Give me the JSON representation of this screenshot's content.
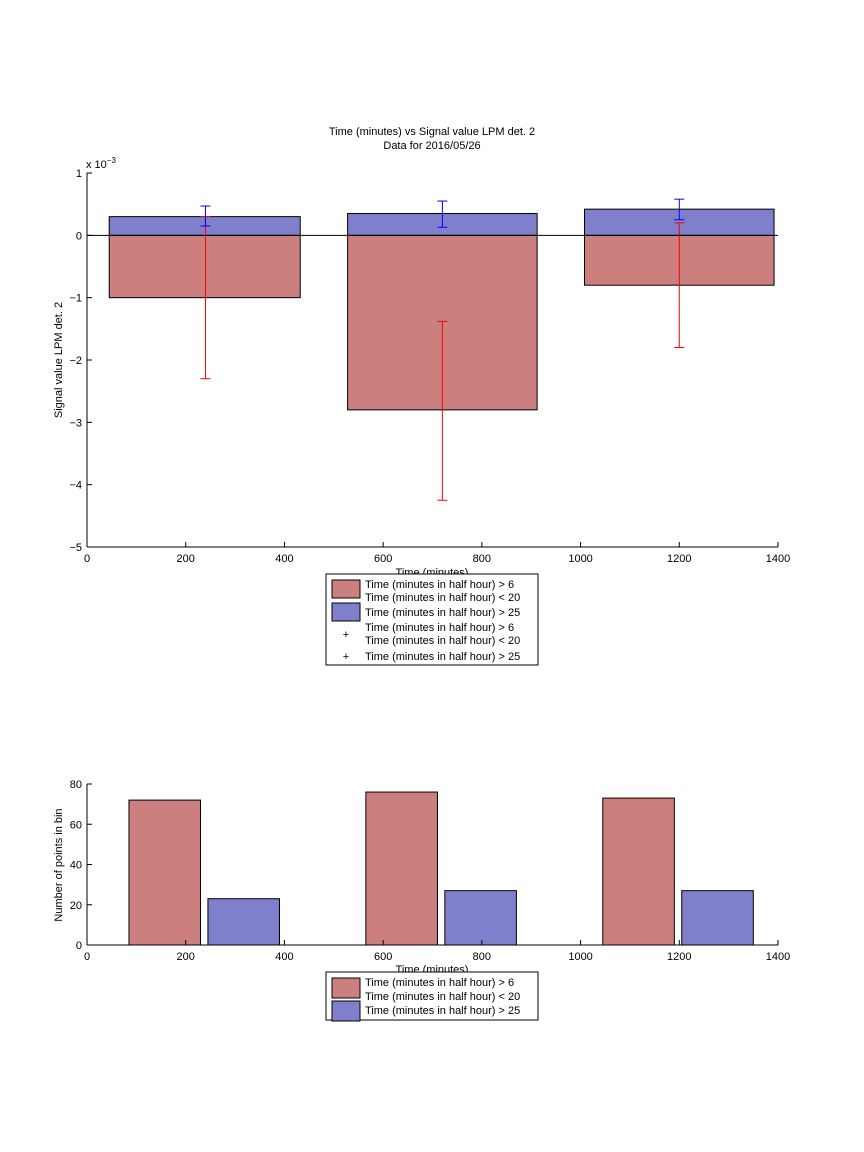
{
  "chart_data": [
    {
      "type": "bar",
      "title": "Time (minutes) vs Signal value LPM det. 2",
      "subtitle": "Data for 2016/05/26",
      "xlabel": "Time (minutes)",
      "ylabel": "Signal value LPM det. 2",
      "y_multiplier": "x 10",
      "y_exponent": "−3",
      "xlim": [
        0,
        1400
      ],
      "ylim": [
        -5,
        1
      ],
      "xticks": [
        0,
        200,
        400,
        600,
        800,
        1000,
        1200,
        1400
      ],
      "yticks": [
        -5,
        -4,
        -3,
        -2,
        -1,
        0,
        1
      ],
      "grid": false,
      "legend_position": "below",
      "bar_left": [
        45,
        528,
        1008
      ],
      "bar_right": [
        432,
        912,
        1392
      ],
      "x": [
        240,
        720,
        1200
      ],
      "series": [
        {
          "name": "Time (minutes in half hour) > 6",
          "name_line2": "Time (minutes in half hour) < 20",
          "color": "#cc7f7f",
          "values": [
            -1.0,
            -2.8,
            -0.8
          ],
          "err_low": [
            -2.3,
            -4.25,
            -1.8
          ],
          "err_high": [
            0.3,
            -1.38,
            0.2
          ],
          "err_color": "#ff0000"
        },
        {
          "name": "Time (minutes in half hour) > 25",
          "color": "#7f7fcc",
          "values": [
            0.3,
            0.35,
            0.42
          ],
          "err_low": [
            0.15,
            0.13,
            0.25
          ],
          "err_high": [
            0.47,
            0.55,
            0.58
          ],
          "err_color": "#0000ff"
        }
      ]
    },
    {
      "type": "bar",
      "xlabel": "Time (minutes)",
      "ylabel": "Number of points in bin",
      "xlim": [
        0,
        1400
      ],
      "ylim": [
        0,
        80
      ],
      "xticks": [
        0,
        200,
        400,
        600,
        800,
        1000,
        1200,
        1400
      ],
      "yticks": [
        0,
        20,
        40,
        60,
        80
      ],
      "grid": false,
      "legend_position": "below",
      "series": [
        {
          "name": "Time (minutes in half hour) > 6",
          "name_line2": "Time (minutes in half hour) < 20",
          "color": "#cc7f7f",
          "bar_left": [
            85,
            565,
            1045
          ],
          "bar_right": [
            230,
            710,
            1190
          ],
          "values": [
            72,
            76,
            73
          ]
        },
        {
          "name": "Time (minutes in half hour) > 25",
          "color": "#7f7fcc",
          "bar_left": [
            245,
            725,
            1205
          ],
          "bar_right": [
            390,
            870,
            1350
          ],
          "values": [
            23,
            27,
            27
          ]
        }
      ]
    }
  ]
}
